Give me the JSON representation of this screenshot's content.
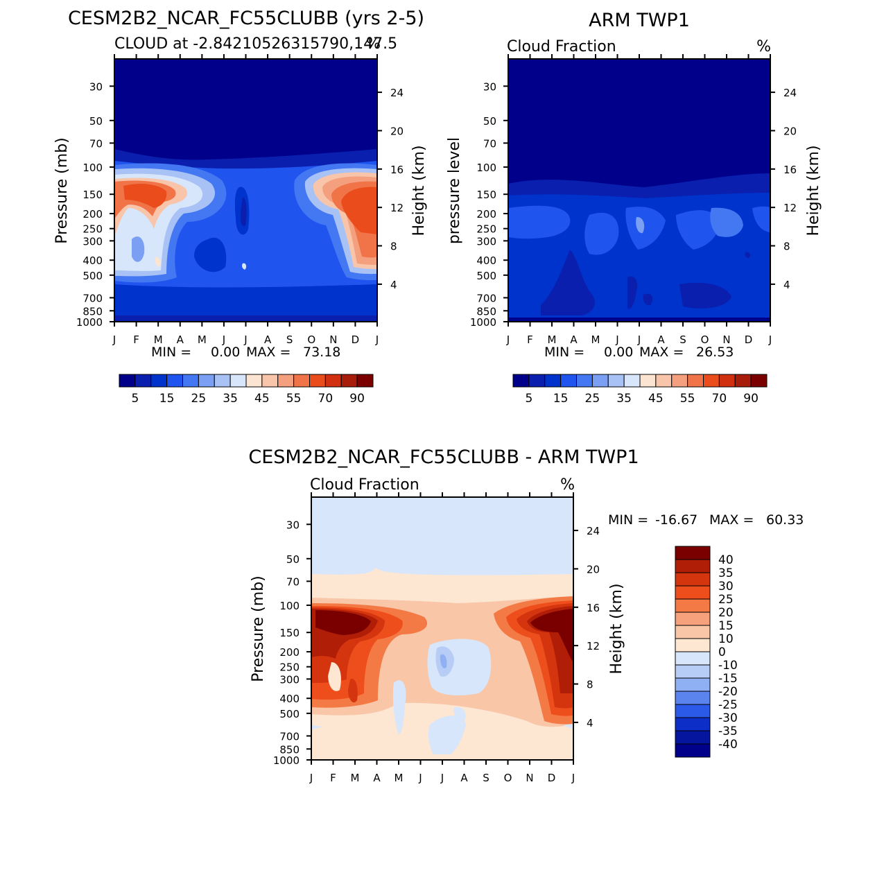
{
  "chart_data": [
    {
      "type": "heatmap",
      "title": "CESM2B2_NCAR_FC55CLUBB (yrs 2-5)",
      "subtitle": "CLOUD at -2.84210526315790,147.5",
      "units": "%",
      "ylabel": "Pressure (mb)",
      "ylabel_right": "Height (km)",
      "x_ticks": [
        "J",
        "F",
        "M",
        "A",
        "M",
        "J",
        "J",
        "A",
        "S",
        "O",
        "N",
        "D",
        "J"
      ],
      "y_ticks": [
        "30",
        "50",
        "70",
        "100",
        "150",
        "200",
        "250",
        "300",
        "400",
        "500",
        "700",
        "850",
        "1000"
      ],
      "y_ticks_values": [
        30,
        50,
        70,
        100,
        150,
        200,
        250,
        300,
        400,
        500,
        700,
        850,
        1000
      ],
      "ylim": [
        1000,
        20
      ],
      "height_ticks": [
        "4",
        "8",
        "12",
        "16",
        "20",
        "24"
      ],
      "min_max_text": {
        "min_label": "MIN =",
        "min_value": "0.00",
        "max_label": "MAX =",
        "max_value": "73.18"
      },
      "colorbar": {
        "orientation": "horizontal",
        "labels": [
          "5",
          "15",
          "25",
          "35",
          "45",
          "55",
          "70",
          "90"
        ],
        "colors": [
          "#00008b",
          "#0a1fae",
          "#0033cc",
          "#1f55ee",
          "#4477f2",
          "#7a9ff3",
          "#a8c2f6",
          "#d7e6fa",
          "#fbe4d2",
          "#f8c5ab",
          "#f4a07e",
          "#f07448",
          "#ea4c1c",
          "#d13010",
          "#a81c0a",
          "#7a0000"
        ]
      }
    },
    {
      "type": "heatmap",
      "title": "ARM TWP1",
      "subtitle": "Cloud Fraction",
      "units": "%",
      "ylabel": "pressure level",
      "ylabel_right": "Height (km)",
      "x_ticks": [
        "J",
        "F",
        "M",
        "A",
        "M",
        "J",
        "J",
        "A",
        "S",
        "O",
        "N",
        "D",
        "J"
      ],
      "y_ticks": [
        "30",
        "50",
        "70",
        "100",
        "150",
        "200",
        "250",
        "300",
        "400",
        "500",
        "700",
        "850",
        "1000"
      ],
      "y_ticks_values": [
        30,
        50,
        70,
        100,
        150,
        200,
        250,
        300,
        400,
        500,
        700,
        850,
        1000
      ],
      "ylim": [
        1000,
        20
      ],
      "height_ticks": [
        "4",
        "8",
        "12",
        "16",
        "20",
        "24"
      ],
      "min_max_text": {
        "min_label": "MIN =",
        "min_value": "0.00",
        "max_label": "MAX =",
        "max_value": "26.53"
      },
      "colorbar": {
        "orientation": "horizontal",
        "labels": [
          "5",
          "15",
          "25",
          "35",
          "45",
          "55",
          "70",
          "90"
        ],
        "colors": [
          "#00008b",
          "#0a1fae",
          "#0033cc",
          "#1f55ee",
          "#4477f2",
          "#7a9ff3",
          "#a8c2f6",
          "#d7e6fa",
          "#fbe4d2",
          "#f8c5ab",
          "#f4a07e",
          "#f07448",
          "#ea4c1c",
          "#d13010",
          "#a81c0a",
          "#7a0000"
        ]
      }
    },
    {
      "type": "heatmap",
      "title": "CESM2B2_NCAR_FC55CLUBB - ARM TWP1",
      "subtitle": "Cloud Fraction",
      "units": "%",
      "ylabel": "Pressure (mb)",
      "ylabel_right": "Height (km)",
      "x_ticks": [
        "J",
        "F",
        "M",
        "A",
        "M",
        "J",
        "J",
        "A",
        "S",
        "O",
        "N",
        "D",
        "J"
      ],
      "y_ticks": [
        "30",
        "50",
        "70",
        "100",
        "150",
        "200",
        "250",
        "300",
        "400",
        "500",
        "700",
        "850",
        "1000"
      ],
      "y_ticks_values": [
        30,
        50,
        70,
        100,
        150,
        200,
        250,
        300,
        400,
        500,
        700,
        850,
        1000
      ],
      "ylim": [
        1000,
        20
      ],
      "height_ticks": [
        "4",
        "8",
        "12",
        "16",
        "20",
        "24"
      ],
      "min_max_text": {
        "min_label": "MIN =",
        "min_value": "-16.67",
        "max_label": "MAX =",
        "max_value": "60.33"
      },
      "colorbar": {
        "orientation": "vertical",
        "labels": [
          "40",
          "35",
          "30",
          "25",
          "20",
          "15",
          "10",
          "0",
          "-10",
          "-15",
          "-20",
          "-25",
          "-30",
          "-35",
          "-40"
        ],
        "colors": [
          "#7a0000",
          "#b01e08",
          "#d4340e",
          "#ee4e1c",
          "#f47a45",
          "#f7a07c",
          "#f9c6a8",
          "#fde7d3",
          "#d7e6fa",
          "#b7cdf6",
          "#8fb0f3",
          "#5b84ee",
          "#2c5ae8",
          "#0d2fc8",
          "#06159e",
          "#00008b"
        ]
      }
    }
  ]
}
